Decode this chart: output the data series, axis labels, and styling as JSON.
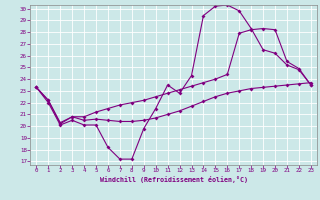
{
  "bg_color": "#cce8e8",
  "line_color": "#800080",
  "grid_color": "#ffffff",
  "xmin": 0,
  "xmax": 23,
  "ymin": 17,
  "ymax": 30,
  "x_ticks": [
    0,
    1,
    2,
    3,
    4,
    5,
    6,
    7,
    8,
    9,
    10,
    11,
    12,
    13,
    14,
    15,
    16,
    17,
    18,
    19,
    20,
    21,
    22,
    23
  ],
  "y_ticks": [
    17,
    18,
    19,
    20,
    21,
    22,
    23,
    24,
    25,
    26,
    27,
    28,
    29,
    30
  ],
  "xlabel": "Windchill (Refroidissement éolien,°C)",
  "line1_x": [
    0,
    1,
    2,
    3,
    4,
    5,
    6,
    7,
    8,
    9,
    10,
    11,
    12,
    13,
    14,
    15,
    16,
    17,
    18,
    19,
    20,
    21,
    22,
    23
  ],
  "line1_y": [
    23.3,
    22.0,
    20.1,
    20.5,
    20.1,
    20.1,
    18.2,
    17.2,
    17.2,
    19.8,
    21.5,
    23.5,
    22.8,
    24.3,
    29.4,
    30.2,
    30.3,
    29.8,
    28.3,
    26.5,
    26.2,
    25.2,
    24.8,
    23.5
  ],
  "line2_x": [
    0,
    1,
    2,
    3,
    4,
    5,
    6,
    7,
    8,
    9,
    10,
    11,
    12,
    13,
    14,
    15,
    16,
    17,
    18,
    19,
    20,
    21,
    22,
    23
  ],
  "line2_y": [
    23.3,
    22.2,
    20.2,
    20.8,
    20.5,
    20.6,
    20.5,
    20.4,
    20.4,
    20.5,
    20.7,
    21.0,
    21.3,
    21.7,
    22.1,
    22.5,
    22.8,
    23.0,
    23.2,
    23.3,
    23.4,
    23.5,
    23.6,
    23.7
  ],
  "line3_x": [
    0,
    1,
    2,
    3,
    4,
    5,
    6,
    7,
    8,
    9,
    10,
    11,
    12,
    13,
    14,
    15,
    16,
    17,
    18,
    19,
    20,
    21,
    22,
    23
  ],
  "line3_y": [
    23.3,
    22.2,
    20.3,
    20.8,
    20.8,
    21.2,
    21.5,
    21.8,
    22.0,
    22.2,
    22.5,
    22.8,
    23.1,
    23.4,
    23.7,
    24.0,
    24.4,
    27.9,
    28.2,
    28.3,
    28.2,
    25.5,
    24.9,
    23.5
  ]
}
